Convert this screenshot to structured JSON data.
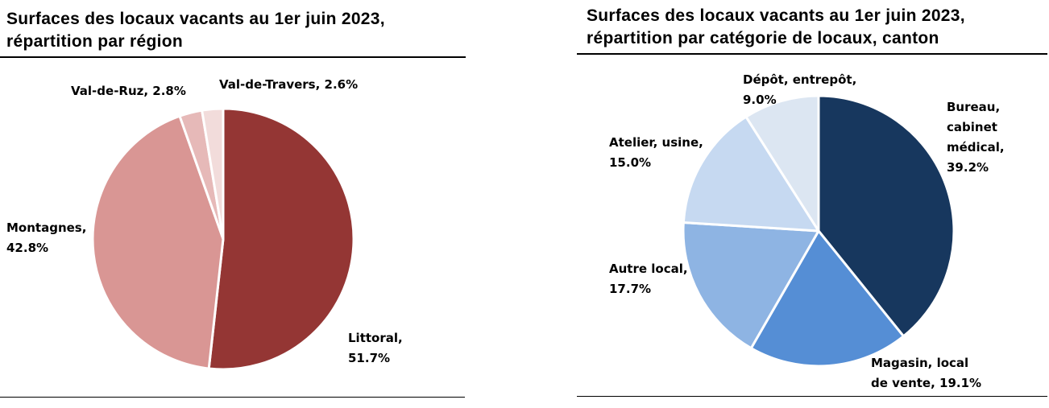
{
  "chart_data": [
    {
      "type": "pie",
      "title_lines": [
        "Surfaces des locaux vacants au 1er juin 2023,",
        "répartition par région"
      ],
      "slices": [
        {
          "label": "Littoral",
          "value": 51.7,
          "value_text": "51.7%",
          "color": "#943634",
          "label_lines": [
            "Littoral,",
            "51.7%"
          ]
        },
        {
          "label": "Montagnes",
          "value": 42.8,
          "value_text": "42.8%",
          "color": "#d99694",
          "label_lines": [
            "Montagnes,",
            "42.8%"
          ]
        },
        {
          "label": "Val-de-Ruz",
          "value": 2.8,
          "value_text": "2.8%",
          "color": "#e6b9b8",
          "label_lines": [
            "Val-de-Ruz, 2.8%"
          ]
        },
        {
          "label": "Val-de-Travers",
          "value": 2.6,
          "value_text": "2.6%",
          "color": "#f2dcdb",
          "label_lines": [
            "Val-de-Travers, 2.6%"
          ]
        }
      ]
    },
    {
      "type": "pie",
      "title_lines": [
        "Surfaces des locaux vacants au 1er juin 2023,",
        "répartition par catégorie de locaux, canton"
      ],
      "slices": [
        {
          "label": "Bureau, cabinet médical",
          "value": 39.2,
          "value_text": "39.2%",
          "color": "#17375e",
          "label_lines": [
            "Bureau,",
            "cabinet",
            "médical,",
            "39.2%"
          ]
        },
        {
          "label": "Magasin, local de vente",
          "value": 19.1,
          "value_text": "19.1%",
          "color": "#558ed5",
          "label_lines": [
            "Magasin, local",
            "de vente, 19.1%"
          ]
        },
        {
          "label": "Autre local",
          "value": 17.7,
          "value_text": "17.7%",
          "color": "#8eb4e3",
          "label_lines": [
            "Autre local,",
            "17.7%"
          ]
        },
        {
          "label": "Atelier, usine",
          "value": 15.0,
          "value_text": "15.0%",
          "color": "#c6d9f1",
          "label_lines": [
            "Atelier, usine,",
            "15.0%"
          ]
        },
        {
          "label": "Dépôt, entrepôt",
          "value": 9.0,
          "value_text": "9.0%",
          "color": "#dce6f2",
          "label_lines": [
            "Dépôt, entrepôt,",
            "9.0%"
          ]
        }
      ]
    }
  ]
}
